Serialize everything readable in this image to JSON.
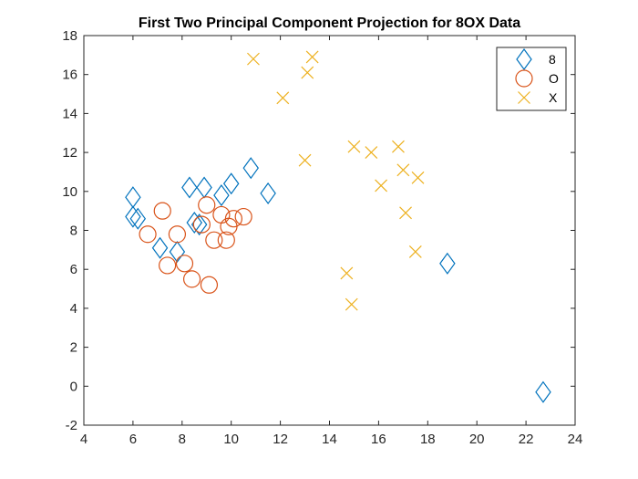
{
  "chart_data": {
    "type": "scatter",
    "title": "First Two Principal Component Projection for 8OX Data",
    "xlabel": "",
    "ylabel": "",
    "xlim": [
      4,
      24
    ],
    "ylim": [
      -2,
      18
    ],
    "xticks": [
      4,
      6,
      8,
      10,
      12,
      14,
      16,
      18,
      20,
      22,
      24
    ],
    "yticks": [
      -2,
      0,
      2,
      4,
      6,
      8,
      10,
      12,
      14,
      16,
      18
    ],
    "grid": false,
    "legend_position": "top-right",
    "series": [
      {
        "name": "8",
        "marker": "diamond",
        "color": "#0072BD",
        "points": [
          [
            6.0,
            9.7
          ],
          [
            6.0,
            8.7
          ],
          [
            6.2,
            8.6
          ],
          [
            7.1,
            7.1
          ],
          [
            7.8,
            6.9
          ],
          [
            8.3,
            10.2
          ],
          [
            8.5,
            8.4
          ],
          [
            8.7,
            8.3
          ],
          [
            8.9,
            10.2
          ],
          [
            9.6,
            9.8
          ],
          [
            10.0,
            10.4
          ],
          [
            10.8,
            11.2
          ],
          [
            11.5,
            9.9
          ],
          [
            18.8,
            6.3
          ],
          [
            22.7,
            -0.3
          ]
        ]
      },
      {
        "name": "O",
        "marker": "circle",
        "color": "#D95319",
        "points": [
          [
            6.6,
            7.8
          ],
          [
            7.2,
            9.0
          ],
          [
            7.4,
            6.2
          ],
          [
            7.8,
            7.8
          ],
          [
            8.1,
            6.3
          ],
          [
            8.4,
            5.5
          ],
          [
            8.8,
            8.3
          ],
          [
            9.0,
            9.3
          ],
          [
            9.1,
            5.2
          ],
          [
            9.3,
            7.5
          ],
          [
            9.6,
            8.8
          ],
          [
            9.8,
            7.5
          ],
          [
            9.9,
            8.2
          ],
          [
            10.1,
            8.6
          ],
          [
            10.5,
            8.7
          ]
        ]
      },
      {
        "name": "X",
        "marker": "x",
        "color": "#EDB120",
        "points": [
          [
            10.9,
            16.8
          ],
          [
            12.1,
            14.8
          ],
          [
            13.0,
            11.6
          ],
          [
            13.1,
            16.1
          ],
          [
            13.3,
            16.9
          ],
          [
            14.7,
            5.8
          ],
          [
            14.9,
            4.2
          ],
          [
            15.0,
            12.3
          ],
          [
            15.7,
            12.0
          ],
          [
            16.1,
            10.3
          ],
          [
            16.8,
            12.3
          ],
          [
            17.0,
            11.1
          ],
          [
            17.1,
            8.9
          ],
          [
            17.5,
            6.9
          ],
          [
            17.6,
            10.7
          ]
        ]
      }
    ]
  }
}
